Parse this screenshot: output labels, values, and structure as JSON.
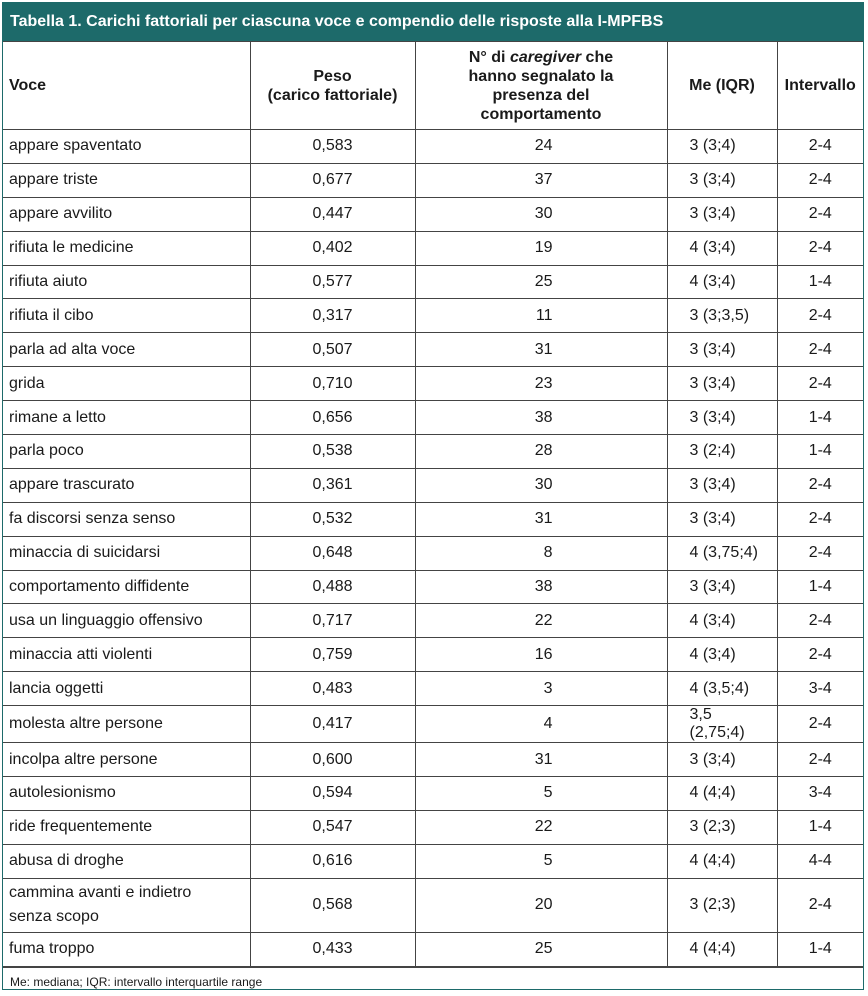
{
  "caption": "Tabella 1. Carichi fattoriali per ciascuna voce e compendio delle risposte alla I-MPFBS",
  "headers": {
    "voce": "Voce",
    "peso_line1": "Peso",
    "peso_line2": "(carico fattoriale)",
    "caregiver_pre": "N° di ",
    "caregiver_em": "caregiver",
    "caregiver_post": " che hanno segnalato la presenza del comportamento",
    "me": "Me (IQR)",
    "intervallo": "Intervallo"
  },
  "rows": [
    {
      "voce": "appare spaventato",
      "peso": "0,583",
      "n": "24",
      "me": "3 (3;4)",
      "intervallo": "2-4"
    },
    {
      "voce": "appare triste",
      "peso": "0,677",
      "n": "37",
      "me": "3 (3;4)",
      "intervallo": "2-4"
    },
    {
      "voce": "appare avvilito",
      "peso": "0,447",
      "n": "30",
      "me": "3 (3;4)",
      "intervallo": "2-4"
    },
    {
      "voce": "rifiuta le medicine",
      "peso": "0,402",
      "n": "19",
      "me": "4 (3;4)",
      "intervallo": "2-4"
    },
    {
      "voce": "rifiuta aiuto",
      "peso": "0,577",
      "n": "25",
      "me": "4 (3;4)",
      "intervallo": "1-4"
    },
    {
      "voce": "rifiuta il cibo",
      "peso": "0,317",
      "n": "11",
      "me": "3 (3;3,5)",
      "intervallo": "2-4"
    },
    {
      "voce": "parla ad alta voce",
      "peso": "0,507",
      "n": "31",
      "me": "3 (3;4)",
      "intervallo": "2-4"
    },
    {
      "voce": "grida",
      "peso": "0,710",
      "n": "23",
      "me": "3 (3;4)",
      "intervallo": "2-4"
    },
    {
      "voce": "rimane a letto",
      "peso": "0,656",
      "n": "38",
      "me": "3 (3;4)",
      "intervallo": "1-4"
    },
    {
      "voce": "parla poco",
      "peso": "0,538",
      "n": "28",
      "me": "3 (2;4)",
      "intervallo": "1-4"
    },
    {
      "voce": "appare trascurato",
      "peso": "0,361",
      "n": "30",
      "me": "3 (3;4)",
      "intervallo": "2-4"
    },
    {
      "voce": "fa discorsi senza senso",
      "peso": "0,532",
      "n": "31",
      "me": "3 (3;4)",
      "intervallo": "2-4"
    },
    {
      "voce": "minaccia di suicidarsi",
      "peso": "0,648",
      "n": "8",
      "me": "4 (3,75;4)",
      "intervallo": "2-4"
    },
    {
      "voce": "comportamento diffidente",
      "peso": "0,488",
      "n": "38",
      "me": "3 (3;4)",
      "intervallo": "1-4"
    },
    {
      "voce": "usa un linguaggio offensivo",
      "peso": "0,717",
      "n": "22",
      "me": "4 (3;4)",
      "intervallo": "2-4"
    },
    {
      "voce": "minaccia atti violenti",
      "peso": "0,759",
      "n": "16",
      "me": "4 (3;4)",
      "intervallo": "2-4"
    },
    {
      "voce": "lancia oggetti",
      "peso": "0,483",
      "n": "3",
      "me": "4 (3,5;4)",
      "intervallo": "3-4"
    },
    {
      "voce": "molesta altre persone",
      "peso": "0,417",
      "n": "4",
      "me": "3,5 (2,75;4)",
      "intervallo": "2-4"
    },
    {
      "voce": "incolpa altre persone",
      "peso": "0,600",
      "n": "31",
      "me": "3 (3;4)",
      "intervallo": "2-4"
    },
    {
      "voce": "autolesionismo",
      "peso": "0,594",
      "n": "5",
      "me": "4 (4;4)",
      "intervallo": "3-4"
    },
    {
      "voce": "ride frequentemente",
      "peso": "0,547",
      "n": "22",
      "me": "3 (2;3)",
      "intervallo": "1-4"
    },
    {
      "voce": "abusa di droghe",
      "peso": "0,616",
      "n": "5",
      "me": "4 (4;4)",
      "intervallo": "4-4"
    },
    {
      "voce": "cammina avanti e indietro senza scopo",
      "voce_line1": "cammina avanti e indietro",
      "voce_line2": "senza scopo",
      "peso": "0,568",
      "n": "20",
      "me": "3 (2;3)",
      "intervallo": "2-4"
    },
    {
      "voce": "fuma troppo",
      "peso": "0,433",
      "n": "25",
      "me": "4 (4;4)",
      "intervallo": "1-4"
    }
  ],
  "footnote": "Me: mediana; IQR: intervallo interquartile range"
}
